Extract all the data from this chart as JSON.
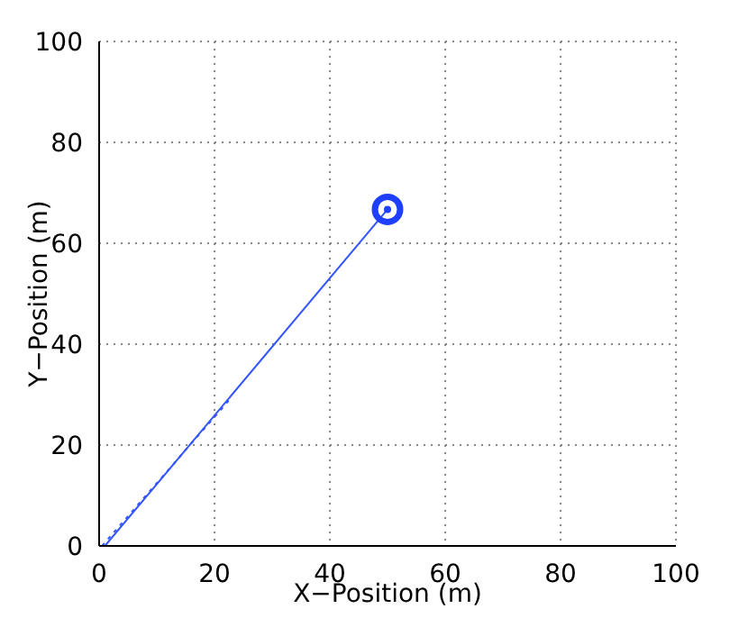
{
  "chart_data": {
    "type": "line",
    "xlabel": "X−Position (m)",
    "ylabel": "Y−Position (m)",
    "xlim": [
      0,
      100
    ],
    "ylim": [
      0,
      100
    ],
    "xticks": [
      0,
      20,
      40,
      60,
      80,
      100
    ],
    "yticks": [
      0,
      20,
      40,
      60,
      80,
      100
    ],
    "grid": true,
    "series": [
      {
        "color": "#3355ff",
        "x": [
          1,
          50
        ],
        "values": [
          0,
          66.7
        ],
        "line_style": "solid"
      },
      {
        "color": "#3355ff",
        "x": [
          0.5,
          23
        ],
        "values": [
          0,
          29.5
        ],
        "line_style": "dotted"
      },
      {
        "type": "scatter",
        "color": "#1f3fff",
        "x": [
          50
        ],
        "values": [
          66.7
        ],
        "marker": "circle"
      }
    ]
  }
}
